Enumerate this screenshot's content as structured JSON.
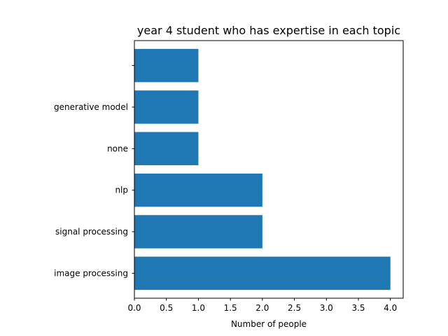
{
  "chart_data": {
    "type": "bar",
    "orientation": "horizontal",
    "title": "year 4 student who has expertise in each topic",
    "xlabel": "Number of people",
    "ylabel": "",
    "categories": [
      "image processing",
      "signal processing",
      "nlp",
      "none",
      "generative model",
      ""
    ],
    "values": [
      4,
      2,
      2,
      1,
      1,
      1
    ],
    "xlim": [
      0,
      4.2
    ],
    "xticks": [
      "0.0",
      "0.5",
      "1.0",
      "1.5",
      "2.0",
      "2.5",
      "3.0",
      "3.5",
      "4.0"
    ],
    "grid": false,
    "bar_color": "#1f77b4"
  }
}
